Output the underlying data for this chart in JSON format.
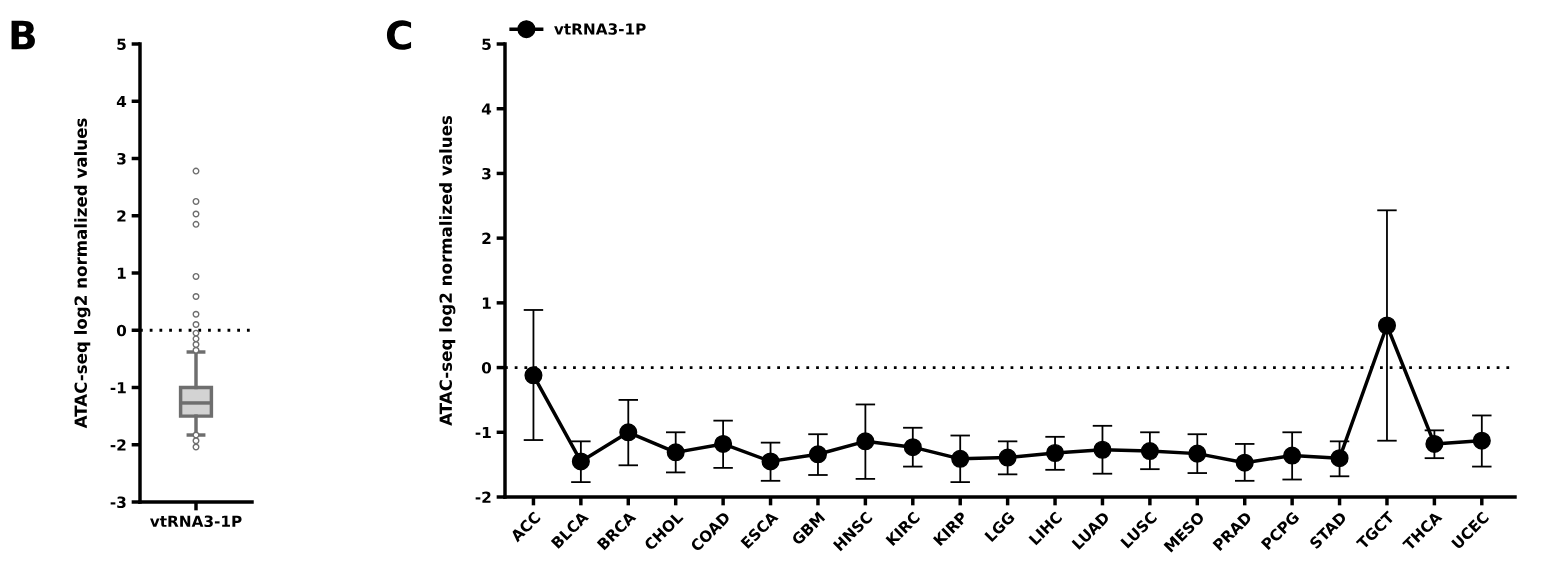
{
  "chart_data": [
    {
      "type": "box",
      "title": "B",
      "ylabel": "ATAC-seq log2 normalized values",
      "categories": [
        "vtRNA3-1P"
      ],
      "color": "#6e6e6e",
      "boxes": [
        {
          "low": -1.83,
          "q1": -1.5,
          "median": -1.27,
          "q3": -1.0,
          "high": -0.38,
          "outliers": [
            2.78,
            2.25,
            2.03,
            1.85,
            0.94,
            0.59,
            0.28,
            0.1,
            -0.05,
            -0.15,
            -0.25,
            -0.35,
            -1.83,
            -1.93,
            -2.04
          ]
        }
      ],
      "ylim": [
        -3,
        5
      ],
      "yticks": [
        -3,
        -2,
        -1,
        0,
        1,
        2,
        3,
        4,
        5
      ],
      "ref_lines": [
        {
          "axis": "y",
          "value": 0,
          "line_style": "dotted",
          "color": "#000000"
        }
      ]
    },
    {
      "type": "line",
      "title": "C",
      "ylabel": "ATAC-seq log2 normalized values",
      "categories": [
        "ACC",
        "BLCA",
        "BRCA",
        "CHOL",
        "COAD",
        "ESCA",
        "GBM",
        "HNSC",
        "KIRC",
        "KIRP",
        "LGG",
        "LIHC",
        "LUAD",
        "LUSC",
        "MESO",
        "PRAD",
        "PCPG",
        "STAD",
        "TGCT",
        "THCA",
        "UCEC"
      ],
      "series": [
        {
          "name": "vtRNA3-1P",
          "color": "#000000",
          "values": [
            -0.12,
            -1.45,
            -1.0,
            -1.31,
            -1.18,
            -1.45,
            -1.34,
            -1.14,
            -1.23,
            -1.41,
            -1.39,
            -1.32,
            -1.27,
            -1.29,
            -1.33,
            -1.47,
            -1.36,
            -1.4,
            0.65,
            -1.18,
            -1.13
          ],
          "errors": [
            [
              -1.12,
              0.89
            ],
            [
              -1.77,
              -1.14
            ],
            [
              -1.51,
              -0.5
            ],
            [
              -1.62,
              -1.0
            ],
            [
              -1.55,
              -0.82
            ],
            [
              -1.75,
              -1.16
            ],
            [
              -1.66,
              -1.03
            ],
            [
              -1.72,
              -0.57
            ],
            [
              -1.53,
              -0.93
            ],
            [
              -1.77,
              -1.05
            ],
            [
              -1.65,
              -1.14
            ],
            [
              -1.58,
              -1.07
            ],
            [
              -1.64,
              -0.9
            ],
            [
              -1.57,
              -1.0
            ],
            [
              -1.63,
              -1.03
            ],
            [
              -1.75,
              -1.18
            ],
            [
              -1.73,
              -1.0
            ],
            [
              -1.68,
              -1.14
            ],
            [
              -1.13,
              2.43
            ],
            [
              -1.4,
              -0.97
            ],
            [
              -1.53,
              -0.74
            ]
          ]
        }
      ],
      "ylim": [
        -2,
        5
      ],
      "yticks": [
        -2,
        -1,
        0,
        1,
        2,
        3,
        4,
        5
      ],
      "marker": "circle",
      "line_style": "solid",
      "legend": "top left",
      "ref_lines": [
        {
          "axis": "y",
          "value": 0,
          "line_style": "dotted",
          "color": "#000000"
        }
      ]
    }
  ]
}
